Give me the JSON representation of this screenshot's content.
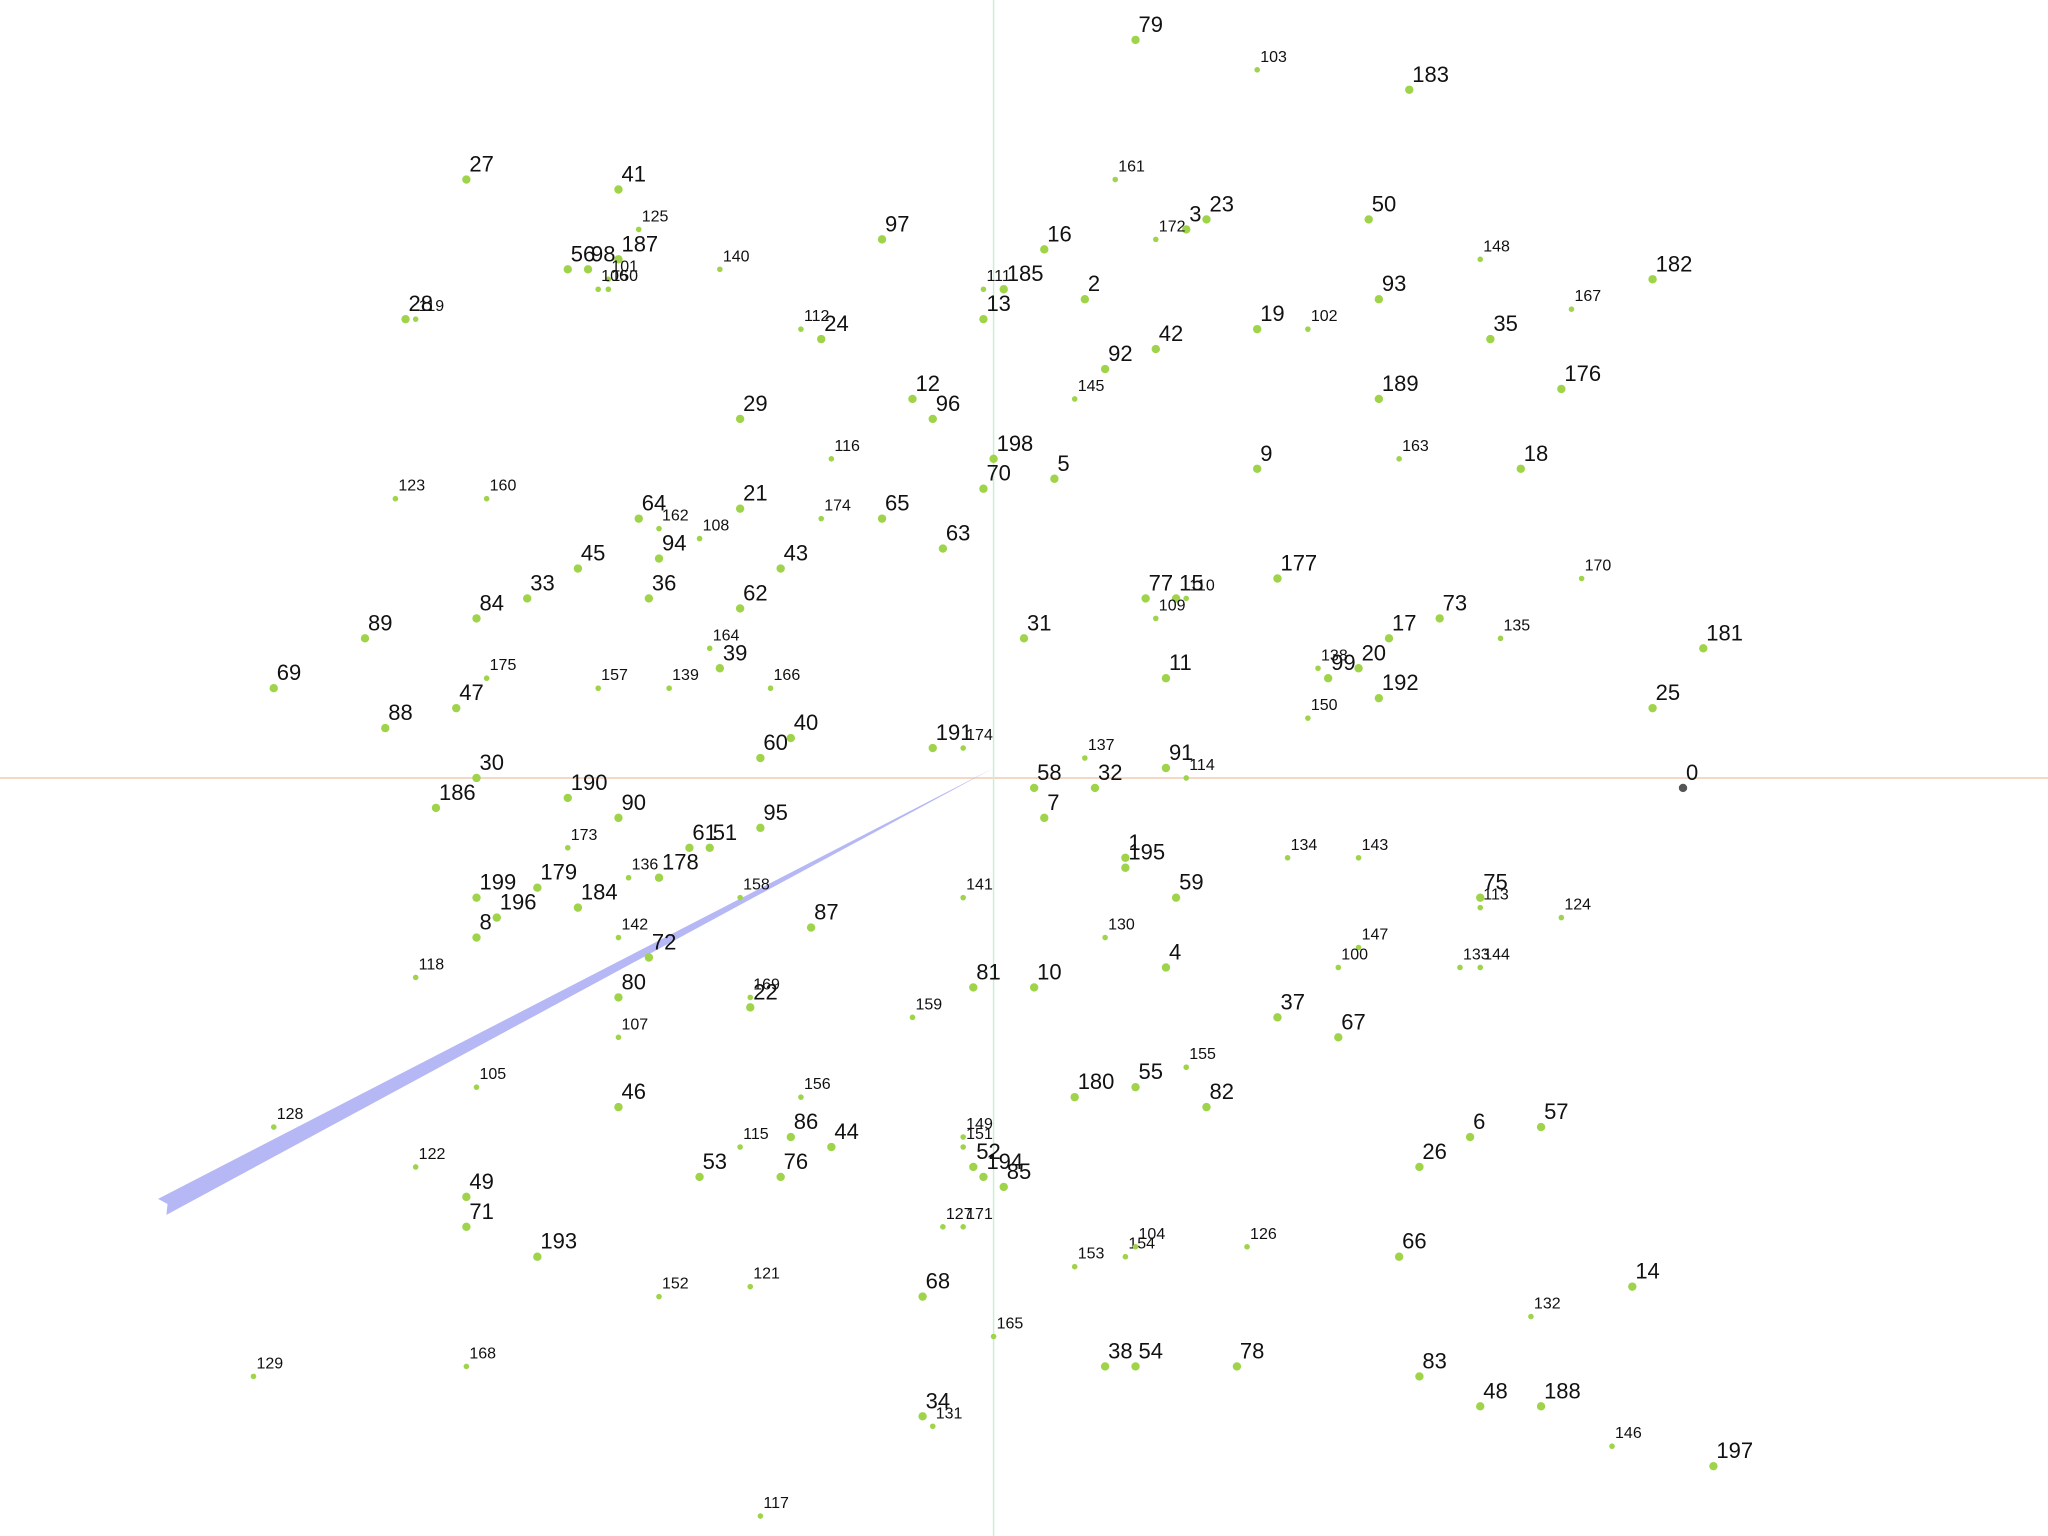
{
  "chart_data": {
    "type": "scatter",
    "title": "",
    "xlabel": "",
    "ylabel": "",
    "grid": false,
    "legend": "none",
    "axes": {
      "x_axis_color": "#f4c9b0",
      "y_axis_color": "#c8efd1"
    },
    "colors": {
      "point": "#9fd44a",
      "origin_point": "#555555",
      "needle": "#b6b8f5"
    },
    "xlim": [
      -98,
      104
    ],
    "ylim": [
      -76,
      78
    ],
    "origin_point": {
      "label": "0",
      "x": 68,
      "y": -1
    },
    "needle": {
      "from": [
        0,
        1
      ],
      "to": [
        -82,
        -43
      ]
    },
    "points": [
      {
        "label": "79",
        "x": 14,
        "y": 74
      },
      {
        "label": "103",
        "x": 26,
        "y": 71
      },
      {
        "label": "183",
        "x": 41,
        "y": 69
      },
      {
        "label": "27",
        "x": -52,
        "y": 60
      },
      {
        "label": "41",
        "x": -37,
        "y": 59
      },
      {
        "label": "125",
        "x": -35,
        "y": 55
      },
      {
        "label": "56",
        "x": -42,
        "y": 51
      },
      {
        "label": "98",
        "x": -40,
        "y": 51
      },
      {
        "label": "187",
        "x": -37,
        "y": 52
      },
      {
        "label": "101",
        "x": -38,
        "y": 50
      },
      {
        "label": "106",
        "x": -39,
        "y": 49
      },
      {
        "label": "150",
        "x": -38,
        "y": 49
      },
      {
        "label": "140",
        "x": -27,
        "y": 51
      },
      {
        "label": "97",
        "x": -11,
        "y": 54
      },
      {
        "label": "161",
        "x": 12,
        "y": 60
      },
      {
        "label": "23",
        "x": 21,
        "y": 56
      },
      {
        "label": "3",
        "x": 19,
        "y": 55
      },
      {
        "label": "172",
        "x": 16,
        "y": 54
      },
      {
        "label": "16",
        "x": 5,
        "y": 53
      },
      {
        "label": "50",
        "x": 37,
        "y": 56
      },
      {
        "label": "148",
        "x": 48,
        "y": 52
      },
      {
        "label": "182",
        "x": 65,
        "y": 50
      },
      {
        "label": "111",
        "x": -1,
        "y": 49
      },
      {
        "label": "185",
        "x": 1,
        "y": 49
      },
      {
        "label": "2",
        "x": 9,
        "y": 48
      },
      {
        "label": "28",
        "x": -58,
        "y": 46
      },
      {
        "label": "119",
        "x": -57,
        "y": 46
      },
      {
        "label": "112",
        "x": -19,
        "y": 45
      },
      {
        "label": "24",
        "x": -17,
        "y": 44
      },
      {
        "label": "13",
        "x": -1,
        "y": 46
      },
      {
        "label": "19",
        "x": 26,
        "y": 45
      },
      {
        "label": "102",
        "x": 31,
        "y": 45
      },
      {
        "label": "93",
        "x": 38,
        "y": 48
      },
      {
        "label": "167",
        "x": 57,
        "y": 47
      },
      {
        "label": "35",
        "x": 49,
        "y": 44
      },
      {
        "label": "92",
        "x": 11,
        "y": 41
      },
      {
        "label": "42",
        "x": 16,
        "y": 43
      },
      {
        "label": "12",
        "x": -8,
        "y": 38
      },
      {
        "label": "96",
        "x": -6,
        "y": 36
      },
      {
        "label": "145",
        "x": 8,
        "y": 38
      },
      {
        "label": "189",
        "x": 38,
        "y": 38
      },
      {
        "label": "176",
        "x": 56,
        "y": 39
      },
      {
        "label": "29",
        "x": -25,
        "y": 36
      },
      {
        "label": "116",
        "x": -16,
        "y": 32
      },
      {
        "label": "198",
        "x": 0,
        "y": 32
      },
      {
        "label": "70",
        "x": -1,
        "y": 29
      },
      {
        "label": "5",
        "x": 6,
        "y": 30
      },
      {
        "label": "9",
        "x": 26,
        "y": 31
      },
      {
        "label": "163",
        "x": 40,
        "y": 32
      },
      {
        "label": "18",
        "x": 52,
        "y": 31
      },
      {
        "label": "123",
        "x": -59,
        "y": 28
      },
      {
        "label": "160",
        "x": -50,
        "y": 28
      },
      {
        "label": "64",
        "x": -35,
        "y": 26
      },
      {
        "label": "162",
        "x": -33,
        "y": 25
      },
      {
        "label": "21",
        "x": -25,
        "y": 27
      },
      {
        "label": "174",
        "x": -17,
        "y": 26
      },
      {
        "label": "65",
        "x": -11,
        "y": 26
      },
      {
        "label": "108",
        "x": -29,
        "y": 24
      },
      {
        "label": "94",
        "x": -33,
        "y": 22
      },
      {
        "label": "63",
        "x": -5,
        "y": 23
      },
      {
        "label": "45",
        "x": -41,
        "y": 21
      },
      {
        "label": "43",
        "x": -21,
        "y": 21
      },
      {
        "label": "177",
        "x": 28,
        "y": 20
      },
      {
        "label": "170",
        "x": 58,
        "y": 20
      },
      {
        "label": "33",
        "x": -46,
        "y": 18
      },
      {
        "label": "36",
        "x": -34,
        "y": 18
      },
      {
        "label": "62",
        "x": -25,
        "y": 17
      },
      {
        "label": "77",
        "x": 15,
        "y": 18
      },
      {
        "label": "15",
        "x": 18,
        "y": 18
      },
      {
        "label": "110",
        "x": 19,
        "y": 18
      },
      {
        "label": "109",
        "x": 16,
        "y": 16
      },
      {
        "label": "73",
        "x": 44,
        "y": 16
      },
      {
        "label": "84",
        "x": -51,
        "y": 16
      },
      {
        "label": "89",
        "x": -62,
        "y": 14
      },
      {
        "label": "164",
        "x": -28,
        "y": 13
      },
      {
        "label": "39",
        "x": -27,
        "y": 11
      },
      {
        "label": "31",
        "x": 3,
        "y": 14
      },
      {
        "label": "17",
        "x": 39,
        "y": 14
      },
      {
        "label": "135",
        "x": 50,
        "y": 14
      },
      {
        "label": "181",
        "x": 70,
        "y": 13
      },
      {
        "label": "175",
        "x": -50,
        "y": 10
      },
      {
        "label": "157",
        "x": -39,
        "y": 9
      },
      {
        "label": "139",
        "x": -32,
        "y": 9
      },
      {
        "label": "166",
        "x": -22,
        "y": 9
      },
      {
        "label": "11",
        "x": 17,
        "y": 10
      },
      {
        "label": "138",
        "x": 32,
        "y": 11
      },
      {
        "label": "99",
        "x": 33,
        "y": 10
      },
      {
        "label": "20",
        "x": 36,
        "y": 11
      },
      {
        "label": "192",
        "x": 38,
        "y": 8
      },
      {
        "label": "69",
        "x": -71,
        "y": 9
      },
      {
        "label": "47",
        "x": -53,
        "y": 7
      },
      {
        "label": "150",
        "x": 31,
        "y": 6
      },
      {
        "label": "25",
        "x": 65,
        "y": 7
      },
      {
        "label": "88",
        "x": -60,
        "y": 5
      },
      {
        "label": "40",
        "x": -20,
        "y": 4
      },
      {
        "label": "191",
        "x": -6,
        "y": 3
      },
      {
        "label": "174",
        "x": -3,
        "y": 3
      },
      {
        "label": "60",
        "x": -23,
        "y": 2
      },
      {
        "label": "137",
        "x": 9,
        "y": 2
      },
      {
        "label": "91",
        "x": 17,
        "y": 1
      },
      {
        "label": "114",
        "x": 19,
        "y": 0
      },
      {
        "label": "30",
        "x": -51,
        "y": 0
      },
      {
        "label": "58",
        "x": 4,
        "y": -1
      },
      {
        "label": "32",
        "x": 10,
        "y": -1
      },
      {
        "label": "7",
        "x": 5,
        "y": -4
      },
      {
        "label": "186",
        "x": -55,
        "y": -3
      },
      {
        "label": "190",
        "x": -42,
        "y": -2
      },
      {
        "label": "90",
        "x": -37,
        "y": -4
      },
      {
        "label": "95",
        "x": -23,
        "y": -5
      },
      {
        "label": "61",
        "x": -30,
        "y": -7
      },
      {
        "label": "51",
        "x": -28,
        "y": -7
      },
      {
        "label": "173",
        "x": -42,
        "y": -7
      },
      {
        "label": "136",
        "x": -36,
        "y": -10
      },
      {
        "label": "178",
        "x": -33,
        "y": -10
      },
      {
        "label": "1",
        "x": 13,
        "y": -8
      },
      {
        "label": "195",
        "x": 13,
        "y": -9
      },
      {
        "label": "134",
        "x": 29,
        "y": -8
      },
      {
        "label": "143",
        "x": 36,
        "y": -8
      },
      {
        "label": "199",
        "x": -51,
        "y": -12
      },
      {
        "label": "179",
        "x": -45,
        "y": -11
      },
      {
        "label": "184",
        "x": -41,
        "y": -13
      },
      {
        "label": "141",
        "x": -3,
        "y": -12
      },
      {
        "label": "59",
        "x": 18,
        "y": -12
      },
      {
        "label": "75",
        "x": 48,
        "y": -12
      },
      {
        "label": "113",
        "x": 48,
        "y": -13
      },
      {
        "label": "124",
        "x": 56,
        "y": -14
      },
      {
        "label": "196",
        "x": -49,
        "y": -14
      },
      {
        "label": "8",
        "x": -51,
        "y": -16
      },
      {
        "label": "158",
        "x": -25,
        "y": -12
      },
      {
        "label": "87",
        "x": -18,
        "y": -15
      },
      {
        "label": "142",
        "x": -37,
        "y": -16
      },
      {
        "label": "72",
        "x": -34,
        "y": -18
      },
      {
        "label": "130",
        "x": 11,
        "y": -16
      },
      {
        "label": "147",
        "x": 36,
        "y": -17
      },
      {
        "label": "100",
        "x": 34,
        "y": -19
      },
      {
        "label": "133",
        "x": 46,
        "y": -19
      },
      {
        "label": "144",
        "x": 48,
        "y": -19
      },
      {
        "label": "4",
        "x": 17,
        "y": -19
      },
      {
        "label": "118",
        "x": -57,
        "y": -20
      },
      {
        "label": "80",
        "x": -37,
        "y": -22
      },
      {
        "label": "169",
        "x": -24,
        "y": -22
      },
      {
        "label": "22",
        "x": -24,
        "y": -23
      },
      {
        "label": "81",
        "x": -2,
        "y": -21
      },
      {
        "label": "10",
        "x": 4,
        "y": -21
      },
      {
        "label": "159",
        "x": -8,
        "y": -24
      },
      {
        "label": "37",
        "x": 28,
        "y": -24
      },
      {
        "label": "107",
        "x": -37,
        "y": -26
      },
      {
        "label": "67",
        "x": 34,
        "y": -26
      },
      {
        "label": "105",
        "x": -51,
        "y": -31
      },
      {
        "label": "155",
        "x": 19,
        "y": -29
      },
      {
        "label": "55",
        "x": 14,
        "y": -31
      },
      {
        "label": "180",
        "x": 8,
        "y": -32
      },
      {
        "label": "82",
        "x": 21,
        "y": -33
      },
      {
        "label": "46",
        "x": -37,
        "y": -33
      },
      {
        "label": "156",
        "x": -19,
        "y": -32
      },
      {
        "label": "128",
        "x": -71,
        "y": -35
      },
      {
        "label": "115",
        "x": -25,
        "y": -37
      },
      {
        "label": "86",
        "x": -20,
        "y": -36
      },
      {
        "label": "44",
        "x": -16,
        "y": -37
      },
      {
        "label": "149",
        "x": -3,
        "y": -36
      },
      {
        "label": "151",
        "x": -3,
        "y": -37
      },
      {
        "label": "6",
        "x": 47,
        "y": -36
      },
      {
        "label": "57",
        "x": 54,
        "y": -35
      },
      {
        "label": "26",
        "x": 42,
        "y": -39
      },
      {
        "label": "122",
        "x": -57,
        "y": -39
      },
      {
        "label": "52",
        "x": -2,
        "y": -39
      },
      {
        "label": "194",
        "x": -1,
        "y": -40
      },
      {
        "label": "85",
        "x": 1,
        "y": -41
      },
      {
        "label": "53",
        "x": -29,
        "y": -40
      },
      {
        "label": "76",
        "x": -21,
        "y": -40
      },
      {
        "label": "49",
        "x": -52,
        "y": -42
      },
      {
        "label": "71",
        "x": -52,
        "y": -45
      },
      {
        "label": "127",
        "x": -5,
        "y": -45
      },
      {
        "label": "171",
        "x": -3,
        "y": -45
      },
      {
        "label": "154",
        "x": 13,
        "y": -48
      },
      {
        "label": "104",
        "x": 14,
        "y": -47
      },
      {
        "label": "126",
        "x": 25,
        "y": -47
      },
      {
        "label": "153",
        "x": 8,
        "y": -49
      },
      {
        "label": "66",
        "x": 40,
        "y": -48
      },
      {
        "label": "193",
        "x": -45,
        "y": -48
      },
      {
        "label": "14",
        "x": 63,
        "y": -51
      },
      {
        "label": "121",
        "x": -24,
        "y": -51
      },
      {
        "label": "152",
        "x": -33,
        "y": -52
      },
      {
        "label": "68",
        "x": -7,
        "y": -52
      },
      {
        "label": "132",
        "x": 53,
        "y": -54
      },
      {
        "label": "165",
        "x": 0,
        "y": -56
      },
      {
        "label": "129",
        "x": -73,
        "y": -60
      },
      {
        "label": "168",
        "x": -52,
        "y": -59
      },
      {
        "label": "38",
        "x": 11,
        "y": -59
      },
      {
        "label": "54",
        "x": 14,
        "y": -59
      },
      {
        "label": "78",
        "x": 24,
        "y": -59
      },
      {
        "label": "83",
        "x": 42,
        "y": -60
      },
      {
        "label": "48",
        "x": 48,
        "y": -63
      },
      {
        "label": "188",
        "x": 54,
        "y": -63
      },
      {
        "label": "34",
        "x": -7,
        "y": -64
      },
      {
        "label": "131",
        "x": -6,
        "y": -65
      },
      {
        "label": "146",
        "x": 61,
        "y": -67
      },
      {
        "label": "197",
        "x": 71,
        "y": -69
      },
      {
        "label": "117",
        "x": -23,
        "y": -74
      }
    ]
  }
}
